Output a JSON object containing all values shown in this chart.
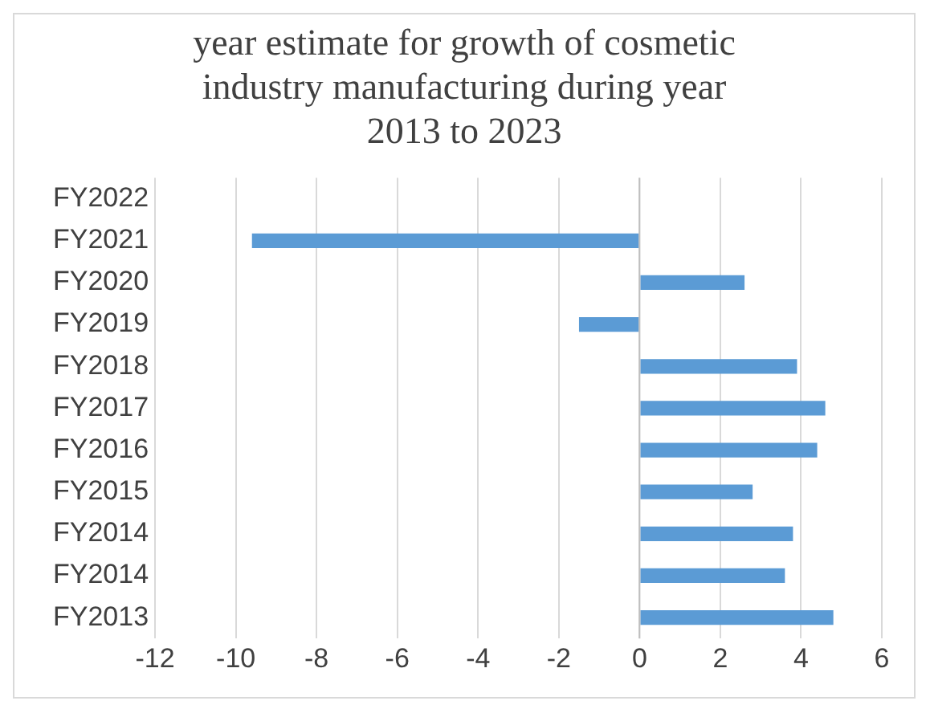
{
  "chart_data": {
    "type": "bar",
    "orientation": "horizontal",
    "title": "year estimate for growth of cosmetic industry manufacturing during year 2013 to 2023",
    "categories": [
      "FY2022",
      "FY2021",
      "FY2020",
      "FY2019",
      "FY2018",
      "FY2017",
      "FY2016",
      "FY2015",
      "FY2014",
      "FY2014",
      "FY2013"
    ],
    "values": [
      null,
      -9.6,
      2.6,
      -1.5,
      3.9,
      4.6,
      4.4,
      2.8,
      3.8,
      3.6,
      4.8
    ],
    "color": "#5b9bd5",
    "xlim": [
      -12,
      6
    ],
    "xticks": [
      -12,
      -10,
      -8,
      -6,
      -4,
      -2,
      0,
      2,
      4,
      6
    ],
    "grid": "x",
    "legend": false
  }
}
